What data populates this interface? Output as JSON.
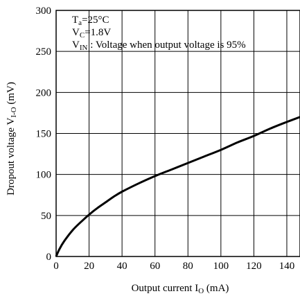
{
  "chart_data": {
    "type": "line",
    "title": "",
    "xlabel": {
      "pre": "Output current I",
      "sub": "O",
      "post": " (mA)"
    },
    "ylabel": {
      "pre": "Dropout voltage V",
      "sub": "I-O",
      "post": " (mV)"
    },
    "xlim": [
      0,
      148
    ],
    "ylim": [
      0,
      300
    ],
    "xticks": [
      0,
      20,
      40,
      60,
      80,
      100,
      120,
      140
    ],
    "yticks": [
      0,
      50,
      100,
      150,
      200,
      250,
      300
    ],
    "grid": true,
    "annotations": [
      {
        "pre": "T",
        "sub": "a",
        "post": "=25°C"
      },
      {
        "pre": "V",
        "sub": "C",
        "post": "=1.8V"
      },
      {
        "pre": "V",
        "sub": "IN",
        "post": " : Voltage when output voltage is 95%"
      }
    ],
    "series": [
      {
        "x": [
          0,
          2,
          5,
          10,
          15,
          20,
          25,
          30,
          35,
          40,
          50,
          60,
          70,
          80,
          90,
          100,
          110,
          120,
          130,
          140,
          148
        ],
        "values": [
          0,
          9,
          19,
          32,
          42,
          51,
          59,
          66,
          73,
          79,
          89,
          98,
          106,
          114,
          122,
          130,
          139,
          147,
          156,
          164,
          170
        ]
      }
    ]
  }
}
